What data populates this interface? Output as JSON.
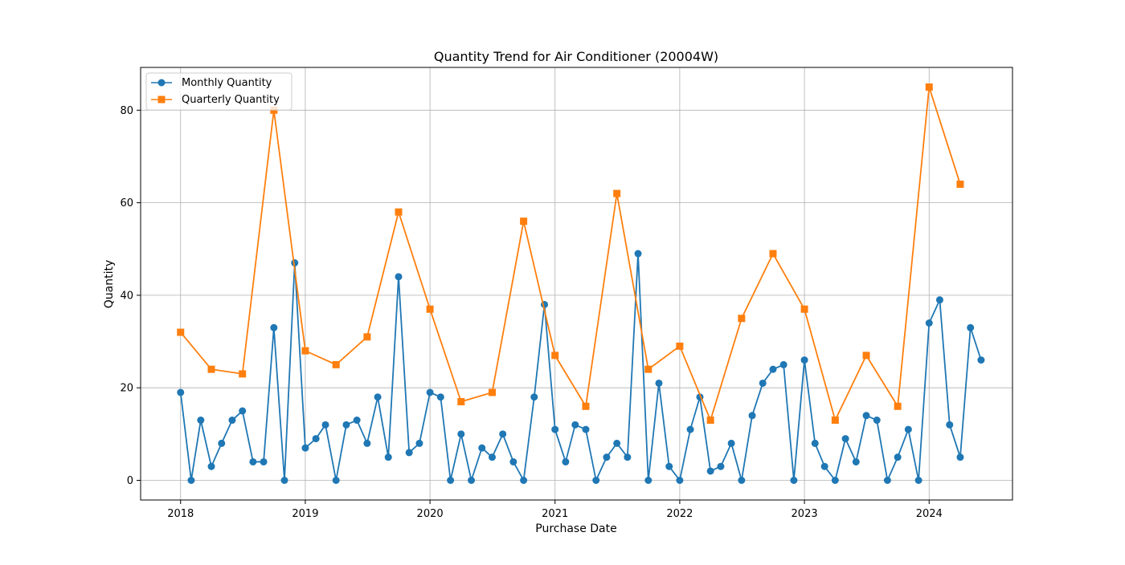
{
  "chart_data": {
    "type": "line",
    "title": "Quantity Trend for Air Conditioner (20004W)",
    "xlabel": "Purchase Date",
    "ylabel": "Quantity",
    "xlim": [
      "2017-09-06",
      "2024-09-01"
    ],
    "ylim": [
      -4.25,
      89.25
    ],
    "x_ticks": [
      "2018",
      "2019",
      "2020",
      "2021",
      "2022",
      "2023",
      "2024"
    ],
    "y_ticks": [
      0,
      20,
      40,
      60,
      80
    ],
    "grid": true,
    "legend_position": "top-left",
    "series": [
      {
        "name": "Monthly Quantity",
        "color": "#1f77b4",
        "marker": "circle",
        "x": [
          "2018-01-01",
          "2018-02-01",
          "2018-03-01",
          "2018-04-01",
          "2018-05-01",
          "2018-06-01",
          "2018-07-01",
          "2018-08-01",
          "2018-09-01",
          "2018-10-01",
          "2018-11-01",
          "2018-12-01",
          "2019-01-01",
          "2019-02-01",
          "2019-03-01",
          "2019-04-01",
          "2019-05-01",
          "2019-06-01",
          "2019-07-01",
          "2019-08-01",
          "2019-09-01",
          "2019-10-01",
          "2019-11-01",
          "2019-12-01",
          "2020-01-01",
          "2020-02-01",
          "2020-03-01",
          "2020-04-01",
          "2020-05-01",
          "2020-06-01",
          "2020-07-01",
          "2020-08-01",
          "2020-09-01",
          "2020-10-01",
          "2020-11-01",
          "2020-12-01",
          "2021-01-01",
          "2021-02-01",
          "2021-03-01",
          "2021-04-01",
          "2021-05-01",
          "2021-06-01",
          "2021-07-01",
          "2021-08-01",
          "2021-09-01",
          "2021-10-01",
          "2021-11-01",
          "2021-12-01",
          "2022-01-01",
          "2022-02-01",
          "2022-03-01",
          "2022-04-01",
          "2022-05-01",
          "2022-06-01",
          "2022-07-01",
          "2022-08-01",
          "2022-09-01",
          "2022-10-01",
          "2022-11-01",
          "2022-12-01",
          "2023-01-01",
          "2023-02-01",
          "2023-03-01",
          "2023-04-01",
          "2023-05-01",
          "2023-06-01",
          "2023-07-01",
          "2023-08-01",
          "2023-09-01",
          "2023-10-01",
          "2023-11-01",
          "2023-12-01",
          "2024-01-01",
          "2024-02-01",
          "2024-03-01",
          "2024-04-01",
          "2024-05-01",
          "2024-06-01"
        ],
        "values": [
          19,
          0,
          13,
          3,
          8,
          13,
          15,
          4,
          4,
          33,
          0,
          47,
          7,
          9,
          12,
          0,
          12,
          13,
          8,
          18,
          5,
          44,
          6,
          8,
          19,
          18,
          0,
          10,
          0,
          7,
          5,
          10,
          4,
          0,
          18,
          38,
          11,
          4,
          12,
          11,
          0,
          5,
          8,
          5,
          49,
          0,
          21,
          3,
          0,
          11,
          18,
          2,
          3,
          8,
          0,
          14,
          21,
          24,
          25,
          0,
          26,
          8,
          3,
          0,
          9,
          4,
          14,
          13,
          0,
          5,
          11,
          0,
          34,
          39,
          12,
          5,
          33,
          26
        ]
      },
      {
        "name": "Quarterly Quantity",
        "color": "#ff7f0e",
        "marker": "square",
        "x": [
          "2018-01-01",
          "2018-04-01",
          "2018-07-01",
          "2018-10-01",
          "2019-01-01",
          "2019-04-01",
          "2019-07-01",
          "2019-10-01",
          "2020-01-01",
          "2020-04-01",
          "2020-07-01",
          "2020-10-01",
          "2021-01-01",
          "2021-04-01",
          "2021-07-01",
          "2021-10-01",
          "2022-01-01",
          "2022-04-01",
          "2022-07-01",
          "2022-10-01",
          "2023-01-01",
          "2023-04-01",
          "2023-07-01",
          "2023-10-01",
          "2024-01-01",
          "2024-04-01"
        ],
        "values": [
          32,
          24,
          23,
          80,
          28,
          25,
          31,
          58,
          37,
          17,
          19,
          56,
          27,
          16,
          62,
          24,
          29,
          13,
          35,
          49,
          37,
          13,
          27,
          16,
          85,
          64
        ]
      }
    ]
  }
}
